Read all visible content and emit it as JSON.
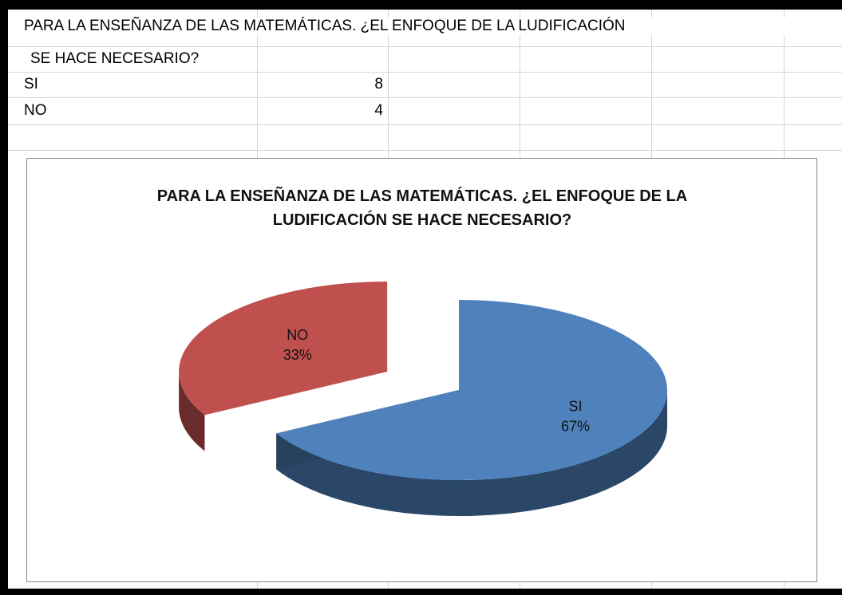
{
  "sheet": {
    "rows": [
      [
        "PARA LA ENSEÑANZA DE LAS MATEMÁTICAS. ¿EL ENFOQUE DE LA LUDIFICACIÓN"
      ],
      [
        "SE HACE  NECESARIO?"
      ],
      [
        "SI",
        8
      ],
      [
        "NO",
        4
      ]
    ]
  },
  "chart_data": {
    "type": "pie",
    "title": "PARA LA ENSEÑANZA DE LAS MATEMÁTICAS. ¿EL ENFOQUE DE LA LUDIFICACIÓN SE HACE NECESARIO?",
    "categories": [
      "SI",
      "NO"
    ],
    "values": [
      67,
      33
    ],
    "value_labels": [
      "67%",
      "33%"
    ],
    "colors": [
      "#4f81bd",
      "#c0504d"
    ]
  }
}
